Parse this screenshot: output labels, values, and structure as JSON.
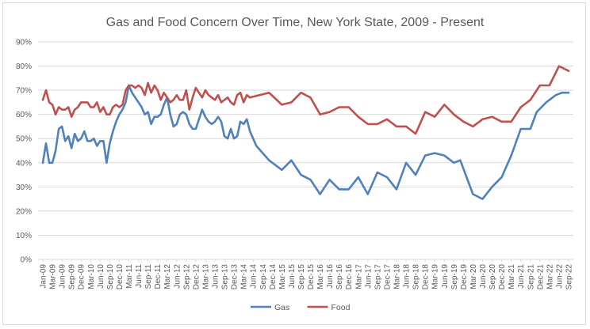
{
  "chart_data": {
    "type": "line",
    "title": "Gas and Food Concern Over Time, New York State, 2009 - Present",
    "xlabel": "",
    "ylabel": "",
    "ylim": [
      0,
      90
    ],
    "y_ticks": [
      "0%",
      "10%",
      "20%",
      "30%",
      "40%",
      "50%",
      "60%",
      "70%",
      "80%",
      "90%"
    ],
    "grid": true,
    "legend_position": "bottom",
    "x_tick_labels": [
      "Jan-09",
      "Mar-09",
      "Jun-09",
      "Sep-09",
      "Dec-09",
      "Mar-10",
      "Jun-10",
      "Sep-10",
      "Dec-10",
      "Mar-11",
      "Jun-11",
      "Sep-11",
      "Dec-11",
      "Mar-12",
      "Jun-12",
      "Sep-12",
      "Dec-12",
      "Mar-13",
      "Jun-13",
      "Sep-13",
      "Dec-13",
      "Mar-14",
      "Jun-14",
      "Sep-14",
      "Dec-14",
      "Mar-15",
      "Jun-15",
      "Sep-15",
      "Dec-15",
      "Mar-16",
      "Jun-16",
      "Sep-16",
      "Dec-16",
      "Mar-17",
      "Jun-17",
      "Sep-17",
      "Dec-17",
      "Mar-18",
      "Jun-18",
      "Sep-18",
      "Dec-18",
      "Mar-19",
      "Jun-19",
      "Sep-19",
      "Dec-19",
      "Mar-20",
      "Jun-20",
      "Sep-20",
      "Dec-20",
      "Mar-21",
      "Jun-21",
      "Sep-21",
      "Dec-21",
      "Mar-22",
      "Jun-22",
      "Sep-22"
    ],
    "series": [
      {
        "name": "Gas",
        "color": "#4f81bd",
        "points": [
          [
            "2009-01",
            40
          ],
          [
            "2009-02",
            48
          ],
          [
            "2009-03",
            40
          ],
          [
            "2009-04",
            40
          ],
          [
            "2009-05",
            45
          ],
          [
            "2009-06",
            54
          ],
          [
            "2009-07",
            55
          ],
          [
            "2009-08",
            49
          ],
          [
            "2009-09",
            51
          ],
          [
            "2009-10",
            46
          ],
          [
            "2009-11",
            52
          ],
          [
            "2009-12",
            49
          ],
          [
            "2010-01",
            50
          ],
          [
            "2010-02",
            53
          ],
          [
            "2010-03",
            49
          ],
          [
            "2010-04",
            49
          ],
          [
            "2010-05",
            50
          ],
          [
            "2010-06",
            47
          ],
          [
            "2010-07",
            49
          ],
          [
            "2010-08",
            49
          ],
          [
            "2010-09",
            40
          ],
          [
            "2010-10",
            48
          ],
          [
            "2010-11",
            53
          ],
          [
            "2010-12",
            57
          ],
          [
            "2011-01",
            60
          ],
          [
            "2011-02",
            62
          ],
          [
            "2011-03",
            65
          ],
          [
            "2011-04",
            72
          ],
          [
            "2011-05",
            69
          ],
          [
            "2011-06",
            67
          ],
          [
            "2011-07",
            65
          ],
          [
            "2011-08",
            63
          ],
          [
            "2011-09",
            60
          ],
          [
            "2011-10",
            61
          ],
          [
            "2011-11",
            56
          ],
          [
            "2011-12",
            59
          ],
          [
            "2012-01",
            59
          ],
          [
            "2012-02",
            60
          ],
          [
            "2012-03",
            64
          ],
          [
            "2012-04",
            67
          ],
          [
            "2012-05",
            60
          ],
          [
            "2012-06",
            55
          ],
          [
            "2012-07",
            56
          ],
          [
            "2012-08",
            60
          ],
          [
            "2012-09",
            61
          ],
          [
            "2012-10",
            60
          ],
          [
            "2012-11",
            56
          ],
          [
            "2012-12",
            54
          ],
          [
            "2013-01",
            54
          ],
          [
            "2013-02",
            58
          ],
          [
            "2013-03",
            62
          ],
          [
            "2013-04",
            59
          ],
          [
            "2013-05",
            57
          ],
          [
            "2013-06",
            56
          ],
          [
            "2013-07",
            57
          ],
          [
            "2013-08",
            59
          ],
          [
            "2013-09",
            57
          ],
          [
            "2013-10",
            51
          ],
          [
            "2013-11",
            50
          ],
          [
            "2013-12",
            54
          ],
          [
            "2014-01",
            50
          ],
          [
            "2014-02",
            51
          ],
          [
            "2014-03",
            57
          ],
          [
            "2014-04",
            56
          ],
          [
            "2014-05",
            58
          ],
          [
            "2014-06",
            53
          ],
          [
            "2014-07",
            50
          ],
          [
            "2014-08",
            47
          ],
          [
            "2014-10",
            44
          ],
          [
            "2014-12",
            41
          ],
          [
            "2015-04",
            37
          ],
          [
            "2015-07",
            41
          ],
          [
            "2015-10",
            35
          ],
          [
            "2016-01",
            33
          ],
          [
            "2016-04",
            27
          ],
          [
            "2016-07",
            33
          ],
          [
            "2016-10",
            29
          ],
          [
            "2017-01",
            29
          ],
          [
            "2017-04",
            34
          ],
          [
            "2017-07",
            27
          ],
          [
            "2017-10",
            36
          ],
          [
            "2018-01",
            34
          ],
          [
            "2018-04",
            29
          ],
          [
            "2018-07",
            40
          ],
          [
            "2018-10",
            35
          ],
          [
            "2019-01",
            43
          ],
          [
            "2019-04",
            44
          ],
          [
            "2019-07",
            43
          ],
          [
            "2019-10",
            40
          ],
          [
            "2019-12",
            41
          ],
          [
            "2020-04",
            27
          ],
          [
            "2020-07",
            25
          ],
          [
            "2020-10",
            30
          ],
          [
            "2021-01",
            34
          ],
          [
            "2021-04",
            43
          ],
          [
            "2021-07",
            54
          ],
          [
            "2021-10",
            54
          ],
          [
            "2021-12",
            61
          ],
          [
            "2022-03",
            65
          ],
          [
            "2022-06",
            68
          ],
          [
            "2022-08",
            69
          ],
          [
            "2022-10",
            69
          ]
        ]
      },
      {
        "name": "Food",
        "color": "#c0504d",
        "points": [
          [
            "2009-01",
            66
          ],
          [
            "2009-02",
            70
          ],
          [
            "2009-03",
            65
          ],
          [
            "2009-04",
            64
          ],
          [
            "2009-05",
            60
          ],
          [
            "2009-06",
            63
          ],
          [
            "2009-07",
            62
          ],
          [
            "2009-08",
            62
          ],
          [
            "2009-09",
            63
          ],
          [
            "2009-10",
            59
          ],
          [
            "2009-11",
            62
          ],
          [
            "2009-12",
            63
          ],
          [
            "2010-01",
            65
          ],
          [
            "2010-02",
            65
          ],
          [
            "2010-03",
            65
          ],
          [
            "2010-04",
            63
          ],
          [
            "2010-05",
            63
          ],
          [
            "2010-06",
            65
          ],
          [
            "2010-07",
            61
          ],
          [
            "2010-08",
            63
          ],
          [
            "2010-09",
            60
          ],
          [
            "2010-10",
            60
          ],
          [
            "2010-11",
            63
          ],
          [
            "2010-12",
            64
          ],
          [
            "2011-01",
            63
          ],
          [
            "2011-02",
            64
          ],
          [
            "2011-03",
            70
          ],
          [
            "2011-04",
            72
          ],
          [
            "2011-05",
            72
          ],
          [
            "2011-06",
            71
          ],
          [
            "2011-07",
            72
          ],
          [
            "2011-08",
            71
          ],
          [
            "2011-09",
            68
          ],
          [
            "2011-10",
            73
          ],
          [
            "2011-11",
            69
          ],
          [
            "2011-12",
            72
          ],
          [
            "2012-01",
            70
          ],
          [
            "2012-02",
            66
          ],
          [
            "2012-03",
            69
          ],
          [
            "2012-04",
            67
          ],
          [
            "2012-05",
            65
          ],
          [
            "2012-06",
            66
          ],
          [
            "2012-07",
            68
          ],
          [
            "2012-08",
            66
          ],
          [
            "2012-09",
            66
          ],
          [
            "2012-10",
            70
          ],
          [
            "2012-11",
            62
          ],
          [
            "2012-12",
            67
          ],
          [
            "2013-01",
            71
          ],
          [
            "2013-02",
            69
          ],
          [
            "2013-03",
            67
          ],
          [
            "2013-04",
            70
          ],
          [
            "2013-05",
            68
          ],
          [
            "2013-06",
            67
          ],
          [
            "2013-07",
            66
          ],
          [
            "2013-08",
            68
          ],
          [
            "2013-09",
            65
          ],
          [
            "2013-10",
            66
          ],
          [
            "2013-11",
            67
          ],
          [
            "2013-12",
            65
          ],
          [
            "2014-01",
            64
          ],
          [
            "2014-02",
            68
          ],
          [
            "2014-03",
            69
          ],
          [
            "2014-04",
            65
          ],
          [
            "2014-05",
            68
          ],
          [
            "2014-06",
            67
          ],
          [
            "2014-12",
            69
          ],
          [
            "2015-04",
            64
          ],
          [
            "2015-07",
            65
          ],
          [
            "2015-10",
            69
          ],
          [
            "2016-01",
            67
          ],
          [
            "2016-04",
            60
          ],
          [
            "2016-07",
            61
          ],
          [
            "2016-10",
            63
          ],
          [
            "2017-01",
            63
          ],
          [
            "2017-04",
            59
          ],
          [
            "2017-07",
            56
          ],
          [
            "2017-10",
            56
          ],
          [
            "2018-01",
            58
          ],
          [
            "2018-04",
            55
          ],
          [
            "2018-07",
            55
          ],
          [
            "2018-10",
            52
          ],
          [
            "2019-01",
            61
          ],
          [
            "2019-04",
            59
          ],
          [
            "2019-07",
            64
          ],
          [
            "2019-10",
            60
          ],
          [
            "2020-01",
            57
          ],
          [
            "2020-04",
            55
          ],
          [
            "2020-07",
            58
          ],
          [
            "2020-10",
            59
          ],
          [
            "2021-01",
            57
          ],
          [
            "2021-04",
            57
          ],
          [
            "2021-07",
            63
          ],
          [
            "2021-10",
            66
          ],
          [
            "2022-01",
            72
          ],
          [
            "2022-04",
            72
          ],
          [
            "2022-07",
            80
          ],
          [
            "2022-10",
            78
          ]
        ]
      }
    ]
  }
}
